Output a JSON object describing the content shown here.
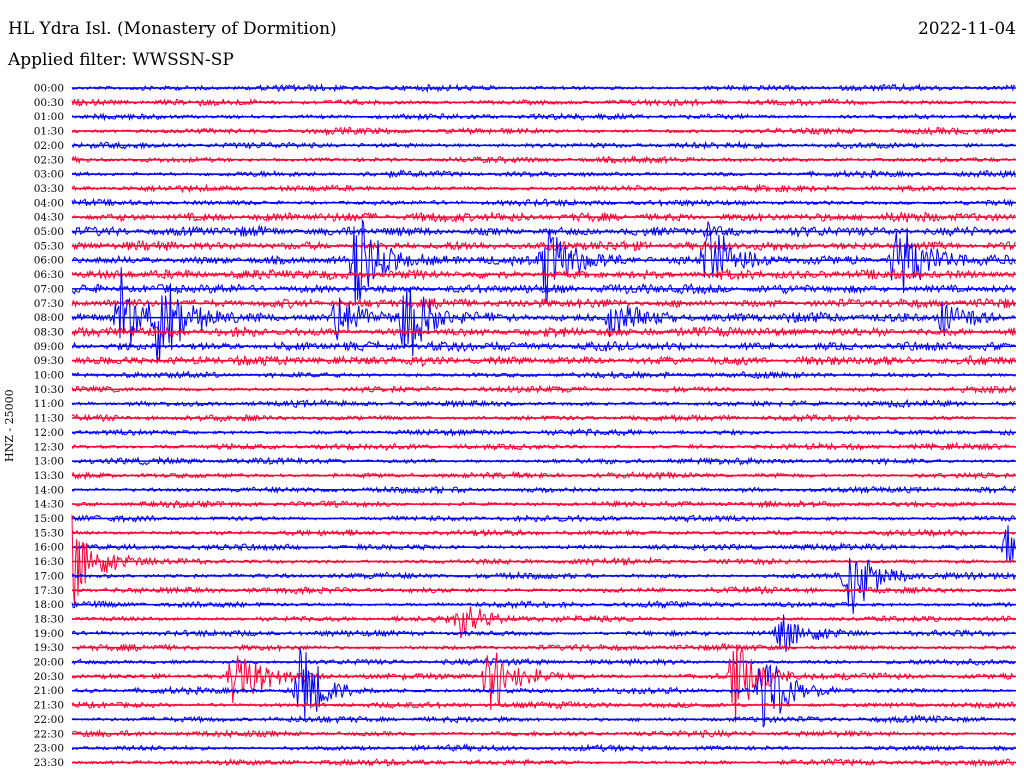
{
  "header": {
    "title": "HL Ydra Isl. (Monastery of Dormition)",
    "date": "2022-11-04",
    "filter": "Applied filter: WWSSN-SP"
  },
  "ylabel": "HNZ - 25000",
  "colors": {
    "odd_trace": "#0000ff",
    "even_trace": "#ff0033"
  },
  "chart_data": {
    "type": "line",
    "title": "HL Ydra Isl. (Monastery of Dormition)",
    "ylabel": "HNZ - 25000",
    "xlabel": "",
    "rows": [
      "00:00",
      "00:30",
      "01:00",
      "01:30",
      "02:00",
      "02:30",
      "03:00",
      "03:30",
      "04:00",
      "04:30",
      "05:00",
      "05:30",
      "06:00",
      "06:30",
      "07:00",
      "07:30",
      "08:00",
      "08:30",
      "09:00",
      "09:30",
      "10:00",
      "10:30",
      "11:00",
      "11:30",
      "12:00",
      "12:30",
      "13:00",
      "13:30",
      "14:00",
      "14:30",
      "15:00",
      "15:30",
      "16:00",
      "16:30",
      "17:00",
      "17:30",
      "18:00",
      "18:30",
      "19:00",
      "19:30",
      "20:00",
      "20:30",
      "21:00",
      "21:30",
      "22:00",
      "22:30",
      "23:00",
      "23:30"
    ],
    "trace_colors": [
      "blue",
      "red"
    ],
    "events": [
      {
        "row": "06:00",
        "x_frac": 0.3,
        "amplitude": "high"
      },
      {
        "row": "06:00",
        "x_frac": 0.5,
        "amplitude": "high"
      },
      {
        "row": "06:00",
        "x_frac": 0.67,
        "amplitude": "high"
      },
      {
        "row": "06:00",
        "x_frac": 0.87,
        "amplitude": "high"
      },
      {
        "row": "08:00",
        "x_frac": 0.05,
        "amplitude": "high"
      },
      {
        "row": "08:00",
        "x_frac": 0.09,
        "amplitude": "high"
      },
      {
        "row": "08:00",
        "x_frac": 0.28,
        "amplitude": "medium"
      },
      {
        "row": "08:00",
        "x_frac": 0.35,
        "amplitude": "high"
      },
      {
        "row": "08:00",
        "x_frac": 0.57,
        "amplitude": "medium"
      },
      {
        "row": "08:00",
        "x_frac": 0.92,
        "amplitude": "medium"
      },
      {
        "row": "16:00",
        "x_frac": 0.99,
        "amplitude": "medium"
      },
      {
        "row": "16:30",
        "x_frac": 0.0,
        "amplitude": "high"
      },
      {
        "row": "17:00",
        "x_frac": 0.82,
        "amplitude": "high"
      },
      {
        "row": "18:30",
        "x_frac": 0.41,
        "amplitude": "medium"
      },
      {
        "row": "19:00",
        "x_frac": 0.75,
        "amplitude": "medium"
      },
      {
        "row": "20:30",
        "x_frac": 0.17,
        "amplitude": "high"
      },
      {
        "row": "20:30",
        "x_frac": 0.44,
        "amplitude": "high"
      },
      {
        "row": "20:30",
        "x_frac": 0.7,
        "amplitude": "high"
      },
      {
        "row": "21:00",
        "x_frac": 0.24,
        "amplitude": "high"
      },
      {
        "row": "21:00",
        "x_frac": 0.73,
        "amplitude": "high"
      }
    ]
  }
}
